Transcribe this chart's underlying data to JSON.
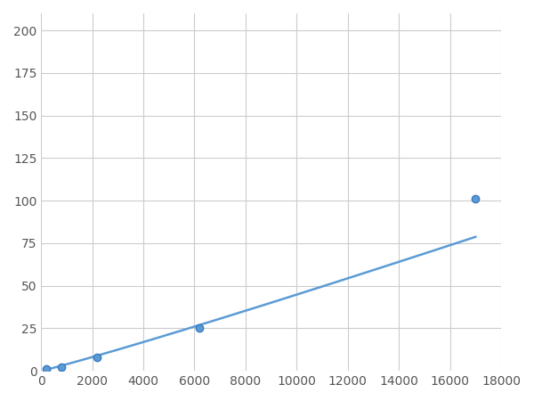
{
  "x": [
    200,
    800,
    2200,
    6200,
    17000
  ],
  "y": [
    1,
    2,
    8,
    25,
    101
  ],
  "line_color": "#5b9bd5",
  "marker_color": "#5b9bd5",
  "marker_size": 6,
  "marker_edge_color": "#3a7abf",
  "linewidth": 1.8,
  "xlim": [
    0,
    18000
  ],
  "ylim": [
    0,
    210
  ],
  "xticks": [
    0,
    2000,
    4000,
    6000,
    8000,
    10000,
    12000,
    14000,
    16000,
    18000
  ],
  "yticks": [
    0,
    25,
    50,
    75,
    100,
    125,
    150,
    175,
    200
  ],
  "grid_color": "#cccccc",
  "background_color": "#ffffff",
  "tick_label_fontsize": 10,
  "tick_label_color": "#555555"
}
